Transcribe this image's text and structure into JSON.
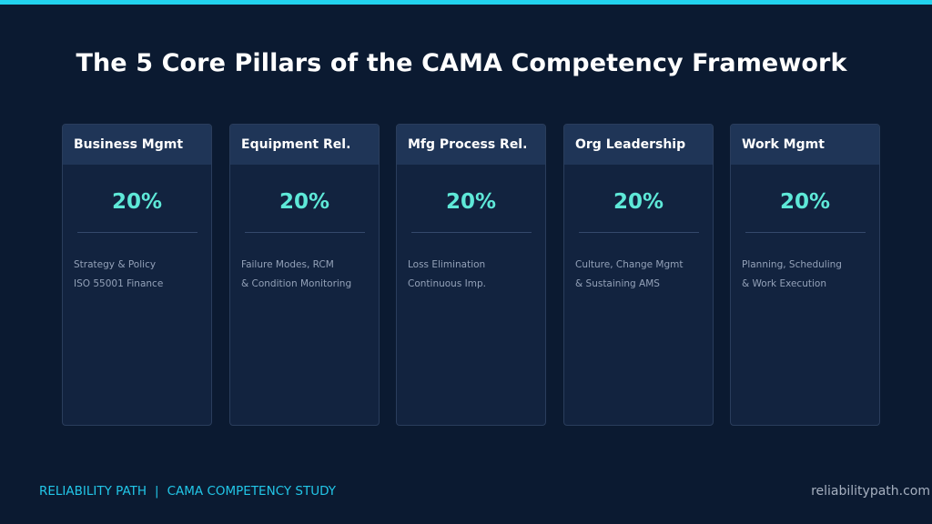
{
  "title": "The 5 Core Pillars of the CAMA Competency Framework",
  "pillars": [
    {
      "name": "Business Mgmt",
      "percent": "20%",
      "lines": [
        "Strategy & Policy",
        "ISO 55001 Finance"
      ]
    },
    {
      "name": "Equipment Rel.",
      "percent": "20%",
      "lines": [
        "Failure Modes, RCM",
        "& Condition Monitoring"
      ]
    },
    {
      "name": "Mfg Process Rel.",
      "percent": "20%",
      "lines": [
        "Loss Elimination",
        "Continuous Imp."
      ]
    },
    {
      "name": "Org Leadership",
      "percent": "20%",
      "lines": [
        "Culture, Change Mgmt",
        "& Sustaining AMS"
      ]
    },
    {
      "name": "Work Mgmt",
      "percent": "20%",
      "lines": [
        "Planning, Scheduling",
        "& Work Execution"
      ]
    }
  ],
  "footer": {
    "brand": "RELIABILITY PATH",
    "separator": "|",
    "study": "CAMA COMPETENCY STUDY",
    "website": "reliabilitypath.com"
  },
  "colors": {
    "background": "#0b1a31",
    "accent": "#22d3ee",
    "percent": "#5ee8d8",
    "card": "#12233f",
    "card_header": "#1f3557"
  }
}
